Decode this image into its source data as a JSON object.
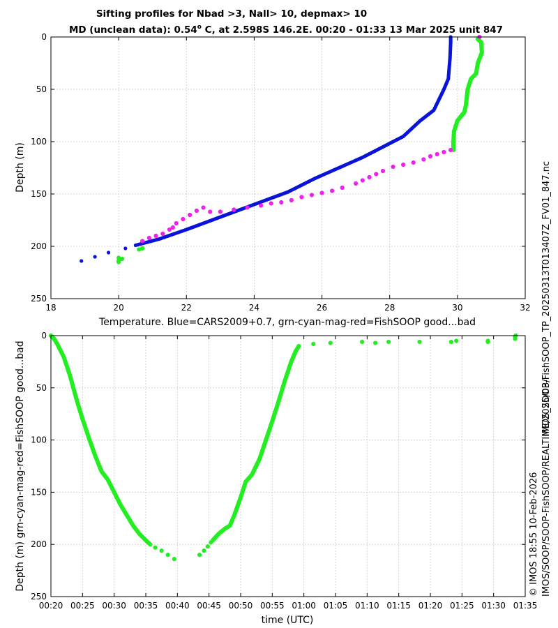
{
  "figure": {
    "title_line1": "Sifting profiles for Nbad >3, Nall> 10, depmax> 10",
    "title_line2_prefix": "MD (unclean data): 0.54",
    "title_line2_degree": "o",
    "title_line2_suffix": " C, at 2.598S 146.2E. 00:20 - 01:33 13 Mar 2025 unit 847",
    "right_label_file": "IMOS_SOOP-FishSOOP_TP_20250313T013407Z_FV01_847.nc",
    "right_label_stamp": "© IMOS 18:55 10-Feb-2026",
    "right_label_path": "IMOS/SOOP/SOOP-FishSOOP/REALTIME/2025/03/"
  },
  "colors": {
    "cars": "#0a14d8",
    "good": "#22ee22",
    "magenta": "#ee22ee"
  },
  "chart_data": [
    {
      "type": "scatter",
      "name": "temperature-profile",
      "xlabel": "Temperature. Blue=CARS2009+0.7, grn-cyan-mag-red=FishSOOP good...bad",
      "ylabel": "Depth (m)",
      "xlim": [
        18,
        32
      ],
      "ylim": [
        250,
        0
      ],
      "xticks": [
        "18",
        "20",
        "22",
        "24",
        "26",
        "28",
        "30",
        "32"
      ],
      "yticks": [
        "0",
        "50",
        "100",
        "150",
        "200",
        "250"
      ],
      "grid": true,
      "series": [
        {
          "name": "CARS2009+0.7",
          "color_key": "cars",
          "style": "dense",
          "points": [
            [
              29.8,
              0
            ],
            [
              29.8,
              5
            ],
            [
              29.78,
              20
            ],
            [
              29.73,
              40
            ],
            [
              29.6,
              50
            ],
            [
              29.3,
              70
            ],
            [
              28.9,
              80
            ],
            [
              28.4,
              95
            ],
            [
              27.8,
              105
            ],
            [
              27.2,
              115
            ],
            [
              26.5,
              125
            ],
            [
              25.8,
              135
            ],
            [
              25.0,
              148
            ],
            [
              24.0,
              160
            ],
            [
              23.0,
              172
            ],
            [
              22.0,
              184
            ],
            [
              21.2,
              193
            ],
            [
              20.5,
              199
            ]
          ]
        },
        {
          "name": "CARS2009+0.7 deep",
          "color_key": "cars",
          "style": "sparse",
          "points": [
            [
              20.2,
              202
            ],
            [
              19.7,
              206
            ],
            [
              19.3,
              210
            ],
            [
              18.9,
              214
            ]
          ]
        },
        {
          "name": "FishSOOP good",
          "color_key": "good",
          "style": "dense",
          "points": [
            [
              30.6,
              2
            ],
            [
              30.7,
              5
            ],
            [
              30.72,
              15
            ],
            [
              30.6,
              25
            ],
            [
              30.55,
              35
            ],
            [
              30.4,
              40
            ],
            [
              30.3,
              50
            ],
            [
              30.25,
              65
            ],
            [
              30.2,
              72
            ],
            [
              30.0,
              80
            ],
            [
              29.9,
              90
            ],
            [
              29.88,
              100
            ],
            [
              29.88,
              108
            ]
          ]
        },
        {
          "name": "FishSOOP good deep",
          "color_key": "good",
          "style": "sparse",
          "points": [
            [
              20.7,
              202
            ],
            [
              20.6,
              203
            ],
            [
              20.0,
              211
            ],
            [
              20.1,
              212
            ],
            [
              20.0,
              214
            ],
            [
              20.0,
              215
            ]
          ]
        },
        {
          "name": "FishSOOP bad",
          "color_key": "magenta",
          "style": "sparse",
          "points": [
            [
              30.65,
              0
            ],
            [
              29.8,
              108
            ],
            [
              29.6,
              110
            ],
            [
              29.4,
              112
            ],
            [
              29.2,
              114
            ],
            [
              29.0,
              117
            ],
            [
              28.7,
              120
            ],
            [
              28.4,
              122
            ],
            [
              28.1,
              124
            ],
            [
              27.8,
              128
            ],
            [
              27.6,
              131
            ],
            [
              27.4,
              134
            ],
            [
              27.2,
              137
            ],
            [
              27.0,
              140
            ],
            [
              26.6,
              144
            ],
            [
              26.3,
              147
            ],
            [
              26.0,
              149
            ],
            [
              25.7,
              151
            ],
            [
              25.4,
              153
            ],
            [
              25.1,
              156
            ],
            [
              24.8,
              158
            ],
            [
              24.5,
              159
            ],
            [
              24.2,
              161
            ],
            [
              23.8,
              163
            ],
            [
              23.4,
              165
            ],
            [
              23.0,
              167
            ],
            [
              22.7,
              167
            ],
            [
              22.5,
              163
            ],
            [
              22.3,
              166
            ],
            [
              22.1,
              170
            ],
            [
              21.9,
              174
            ],
            [
              21.7,
              178
            ],
            [
              21.6,
              182
            ],
            [
              21.5,
              184
            ],
            [
              21.3,
              188
            ],
            [
              21.1,
              190
            ],
            [
              20.9,
              192
            ],
            [
              20.7,
              195
            ]
          ]
        }
      ]
    },
    {
      "type": "scatter",
      "name": "depth-time",
      "xlabel": "time (UTC)",
      "ylabel": "Depth (m) grn-cyan-mag-red=FishSOOP good...bad",
      "xlim": [
        0,
        75
      ],
      "ylim": [
        250,
        0
      ],
      "xticks": [
        "00:20",
        "00:25",
        "00:30",
        "00:35",
        "00:40",
        "00:45",
        "00:50",
        "00:55",
        "01:00",
        "01:05",
        "01:10",
        "01:15",
        "01:20",
        "01:25",
        "01:30",
        "01:35"
      ],
      "yticks": [
        "0",
        "50",
        "100",
        "150",
        "200",
        "250"
      ],
      "grid": true,
      "series": [
        {
          "name": "FishSOOP good (descent)",
          "color_key": "good",
          "style": "dense",
          "points": [
            [
              0,
              0
            ],
            [
              0.5,
              3
            ],
            [
              1,
              8
            ],
            [
              2,
              20
            ],
            [
              3,
              38
            ],
            [
              4,
              60
            ],
            [
              5,
              80
            ],
            [
              6,
              98
            ],
            [
              7,
              115
            ],
            [
              8,
              130
            ],
            [
              9,
              138
            ],
            [
              10,
              150
            ],
            [
              11,
              162
            ],
            [
              12,
              172
            ],
            [
              13,
              182
            ],
            [
              14,
              190
            ],
            [
              15,
              196
            ],
            [
              15.7,
              200
            ]
          ]
        },
        {
          "name": "FishSOOP good (sparse)",
          "color_key": "good",
          "style": "sparse",
          "points": [
            [
              16.5,
              203
            ],
            [
              17.5,
              206
            ],
            [
              18.5,
              210
            ],
            [
              19.5,
              214
            ],
            [
              23.5,
              210
            ],
            [
              24.2,
              206
            ],
            [
              24.8,
              202
            ],
            [
              25.3,
              198
            ]
          ]
        },
        {
          "name": "FishSOOP good (ascent)",
          "color_key": "good",
          "style": "dense",
          "points": [
            [
              25.6,
              196
            ],
            [
              26.5,
              190
            ],
            [
              27.5,
              185
            ],
            [
              28.3,
              182
            ],
            [
              29,
              172
            ],
            [
              30,
              155
            ],
            [
              30.8,
              140
            ],
            [
              31.8,
              133
            ],
            [
              33,
              118
            ],
            [
              34,
              100
            ],
            [
              35,
              82
            ],
            [
              36,
              63
            ],
            [
              37,
              43
            ],
            [
              38,
              25
            ],
            [
              38.7,
              15
            ],
            [
              39.2,
              10
            ]
          ]
        },
        {
          "name": "FishSOOP good (surface)",
          "color_key": "good",
          "style": "sparse",
          "points": [
            [
              41.5,
              8
            ],
            [
              44.2,
              7
            ],
            [
              49.2,
              6
            ],
            [
              51.3,
              7
            ],
            [
              53.4,
              6
            ],
            [
              58.3,
              6
            ],
            [
              63.3,
              6
            ],
            [
              64.1,
              5
            ],
            [
              69.1,
              6
            ],
            [
              69.1,
              5
            ],
            [
              73.4,
              3
            ],
            [
              73.4,
              1
            ],
            [
              73.5,
              0
            ]
          ]
        }
      ]
    }
  ]
}
